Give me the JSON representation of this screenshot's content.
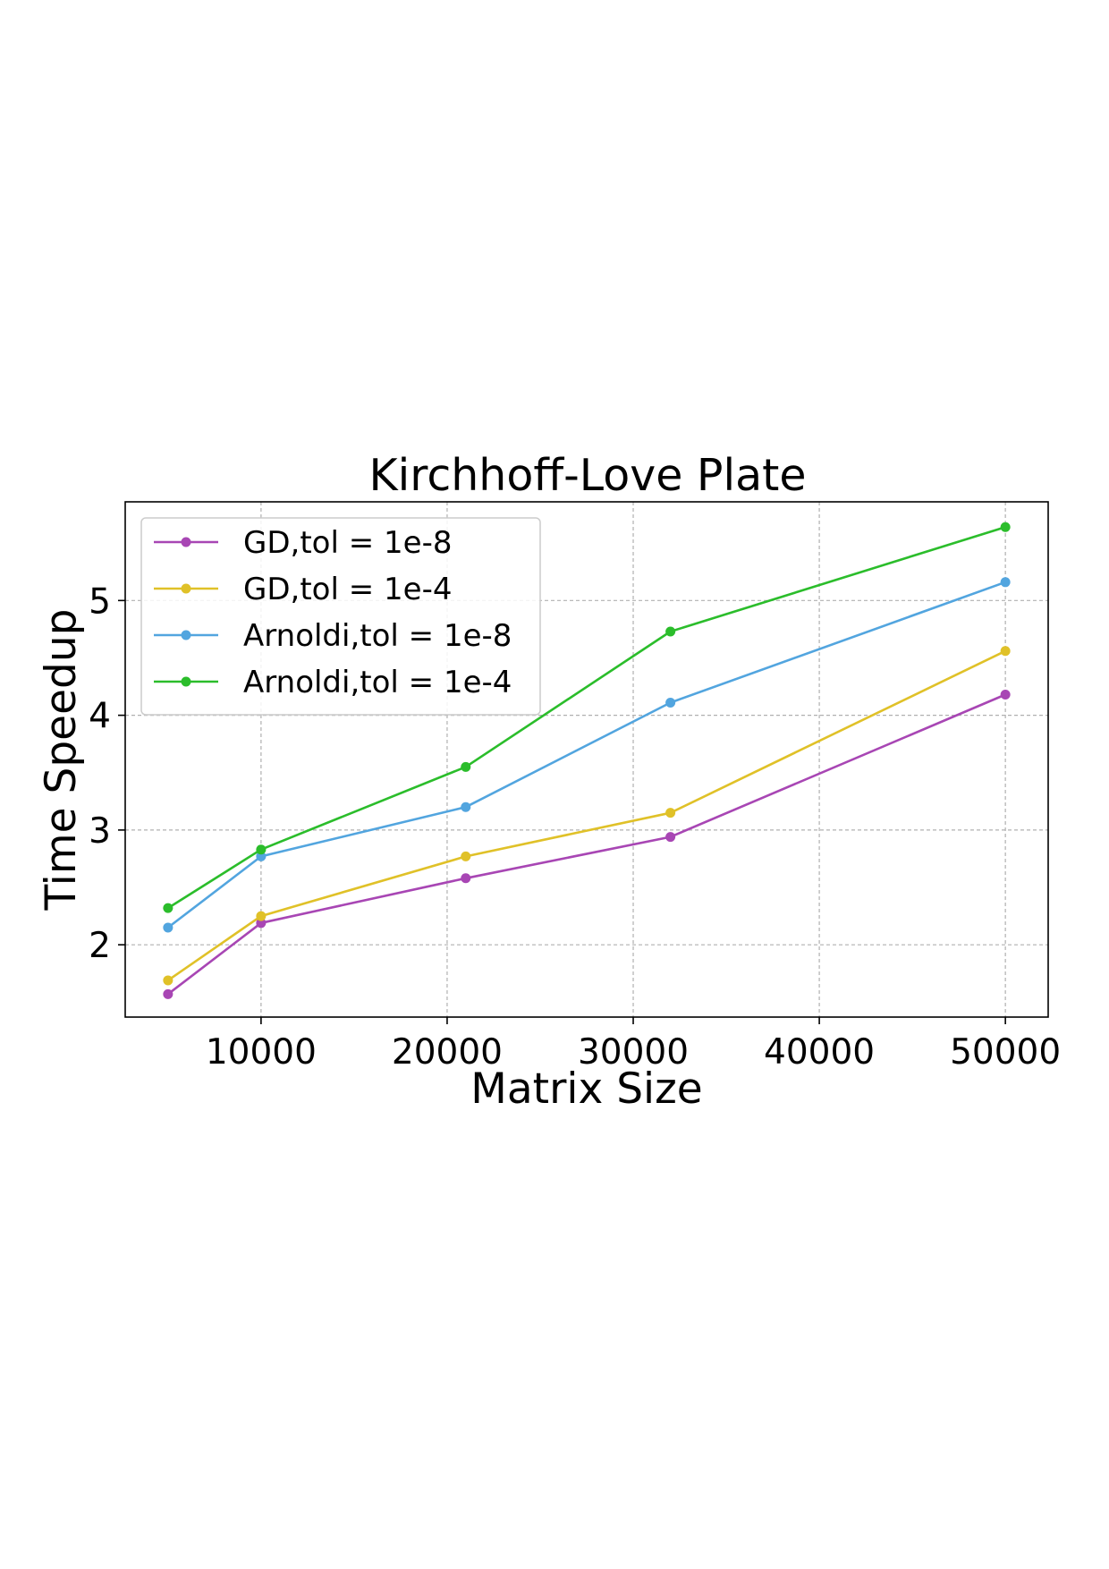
{
  "chart_data": {
    "type": "line",
    "title": "Kirchhoff-Love Plate",
    "xlabel": "Matrix Size",
    "ylabel": "Time Speedup",
    "x": [
      5000,
      10000,
      21000,
      32000,
      50000
    ],
    "xlim": [
      2700,
      52300
    ],
    "ylim": [
      1.37,
      5.86
    ],
    "xticks": [
      10000,
      20000,
      30000,
      40000,
      50000
    ],
    "xtick_labels": [
      "10000",
      "20000",
      "30000",
      "40000",
      "50000"
    ],
    "yticks": [
      2,
      3,
      4,
      5
    ],
    "ytick_labels": [
      "2",
      "3",
      "4",
      "5"
    ],
    "grid": true,
    "legend_position": "upper-left",
    "series": [
      {
        "name": "GD,tol = 1e-8",
        "color": "#a846b4",
        "values": [
          1.57,
          2.19,
          2.58,
          2.94,
          4.18
        ]
      },
      {
        "name": "GD,tol = 1e-4",
        "color": "#e0c128",
        "values": [
          1.69,
          2.25,
          2.77,
          3.15,
          4.56
        ]
      },
      {
        "name": "Arnoldi,tol = 1e-8",
        "color": "#52a5df",
        "values": [
          2.15,
          2.77,
          3.2,
          4.11,
          5.16
        ]
      },
      {
        "name": "Arnoldi,tol = 1e-4",
        "color": "#2bbd2b",
        "values": [
          2.32,
          2.83,
          3.55,
          4.73,
          5.64
        ]
      }
    ]
  }
}
